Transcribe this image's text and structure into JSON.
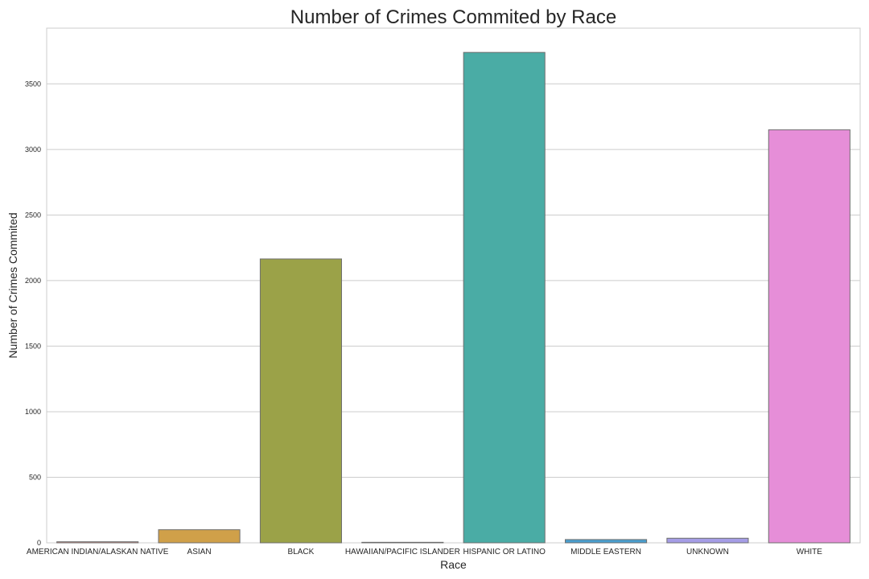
{
  "chart_data": {
    "type": "bar",
    "title": "Number of Crimes Commited by Race",
    "xlabel": "Race",
    "ylabel": "Number of Crimes Commited",
    "categories": [
      "AMERICAN INDIAN/ALASKAN NATIVE",
      "ASIAN",
      "BLACK",
      "HAWAIIAN/PACIFIC ISLANDER",
      "HISPANIC OR LATINO",
      "MIDDLE EASTERN",
      "UNKNOWN",
      "WHITE"
    ],
    "values": [
      8,
      100,
      2165,
      4,
      3740,
      25,
      35,
      3150
    ],
    "colors": [
      "#e08f8b",
      "#d0a049",
      "#9ba248",
      "#6faa5a",
      "#4aaca5",
      "#4a9fcf",
      "#a59de6",
      "#e68ed8"
    ],
    "edge_color": "#6e6e6e",
    "yticks": [
      0,
      500,
      1000,
      1500,
      2000,
      2500,
      3000,
      3500
    ],
    "ylim": [
      0,
      3925
    ],
    "grid": "horizontal",
    "style": "whitegrid"
  }
}
